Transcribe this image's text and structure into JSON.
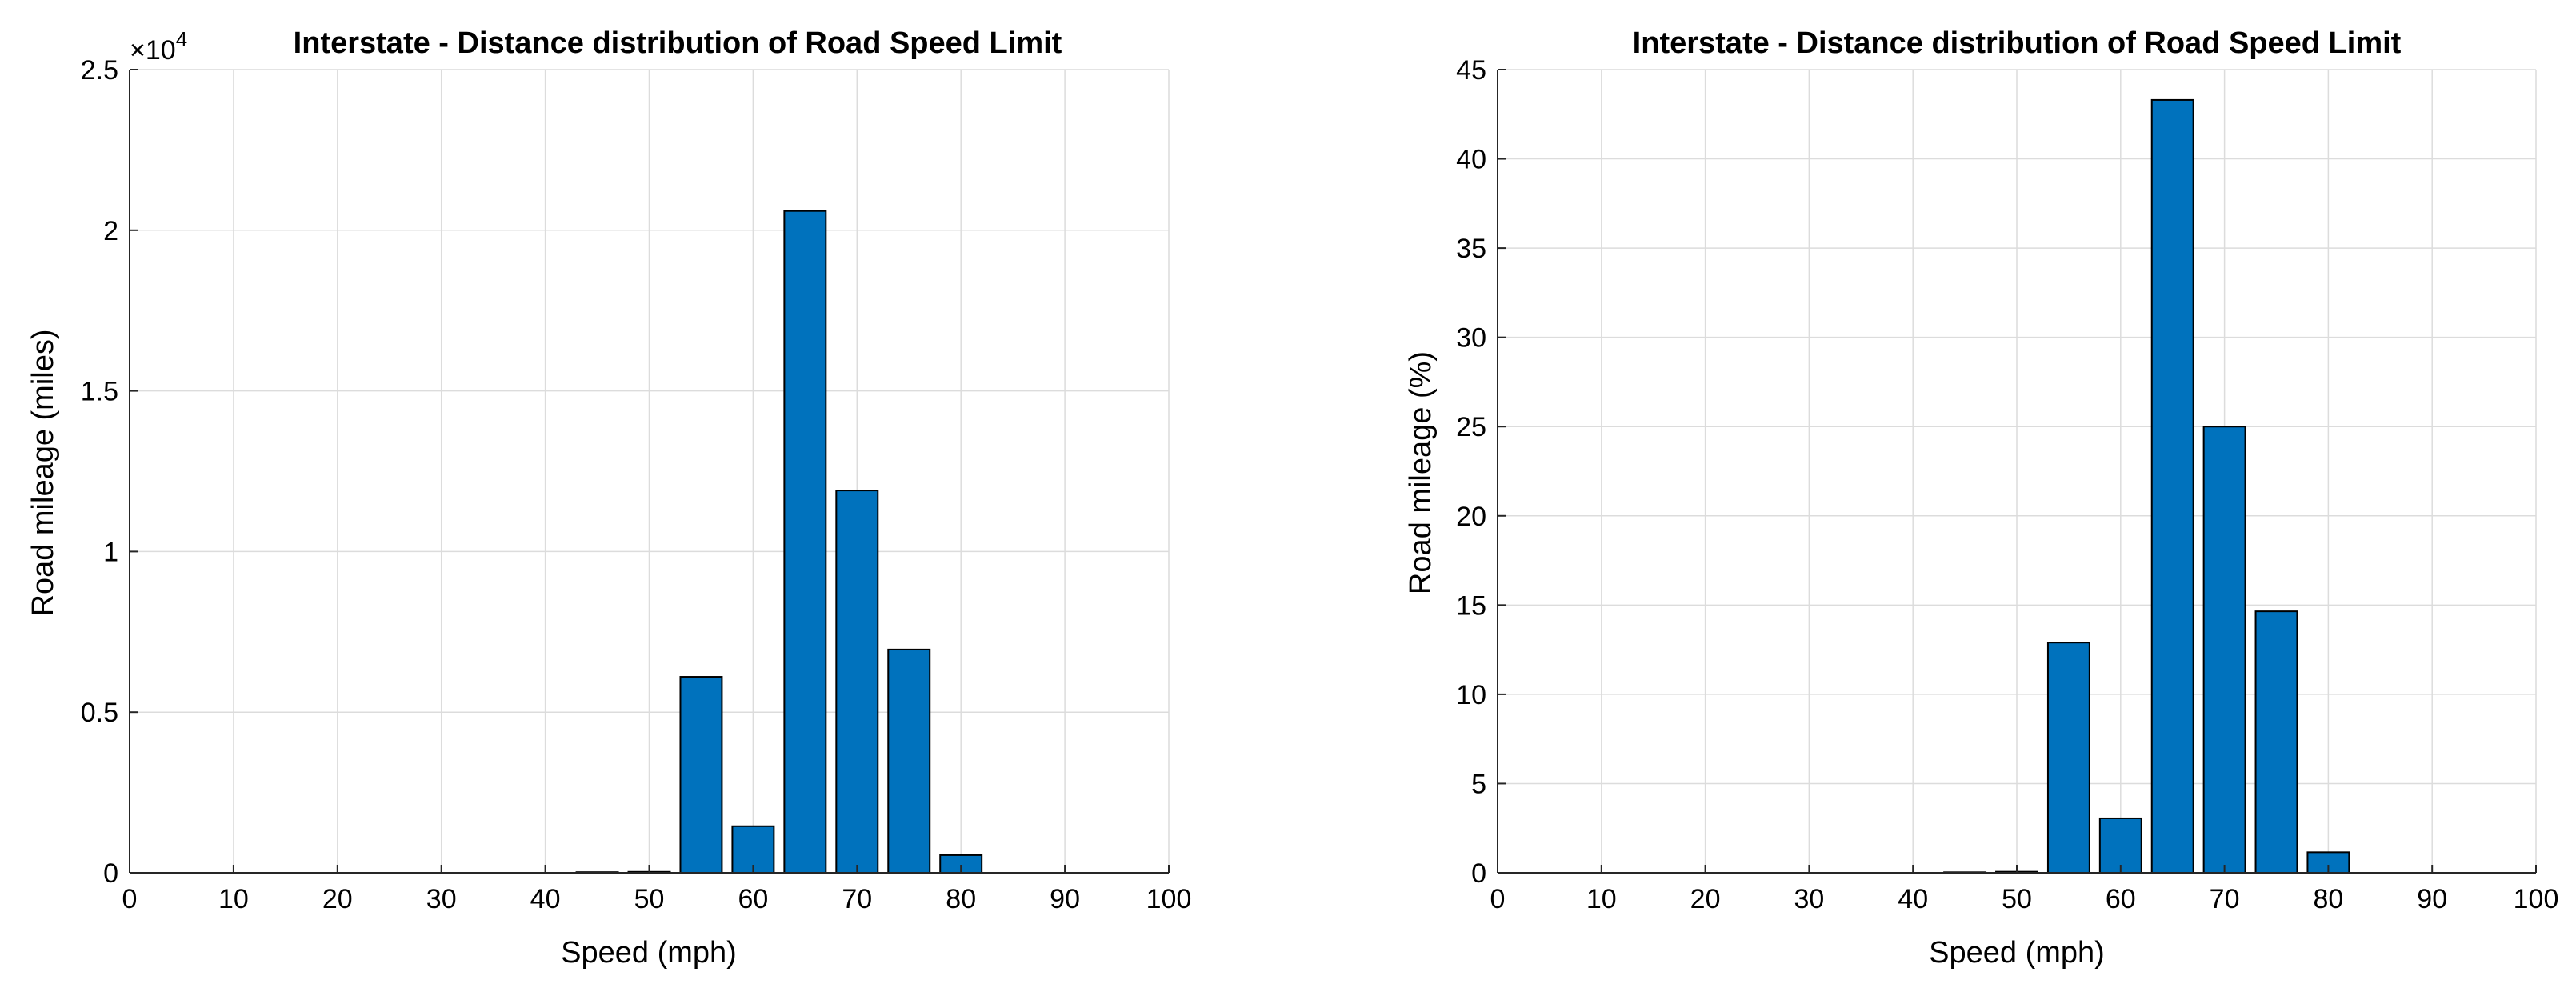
{
  "chart_data": [
    {
      "type": "bar",
      "title": "Interstate - Distance distribution of Road Speed Limit",
      "xlabel": "Speed (mph)",
      "ylabel": "Road mileage (miles)",
      "exponent_label": "×10",
      "exponent_power": "4",
      "xlim": [
        0,
        100
      ],
      "ylim": [
        0,
        2.5
      ],
      "xticks": [
        "0",
        "10",
        "20",
        "30",
        "40",
        "50",
        "60",
        "70",
        "80",
        "90",
        "100"
      ],
      "yticks": [
        "0",
        "0.5",
        "1",
        "1.5",
        "2",
        "2.5"
      ],
      "grid": true,
      "bar_color": "#0072BD",
      "x": [
        45,
        50,
        55,
        60,
        65,
        70,
        75,
        80
      ],
      "values": [
        0.002,
        0.003,
        0.61,
        0.145,
        2.06,
        1.19,
        0.695,
        0.055
      ]
    },
    {
      "type": "bar",
      "title": "Interstate - Distance distribution of Road Speed Limit",
      "xlabel": "Speed (mph)",
      "ylabel": "Road mileage (%)",
      "xlim": [
        0,
        100
      ],
      "ylim": [
        0,
        45
      ],
      "xticks": [
        "0",
        "10",
        "20",
        "30",
        "40",
        "50",
        "60",
        "70",
        "80",
        "90",
        "100"
      ],
      "yticks": [
        "0",
        "5",
        "10",
        "15",
        "20",
        "25",
        "30",
        "35",
        "40",
        "45"
      ],
      "grid": true,
      "bar_color": "#0072BD",
      "x": [
        45,
        50,
        55,
        60,
        65,
        70,
        75,
        80
      ],
      "values": [
        0.03,
        0.06,
        12.9,
        3.05,
        43.3,
        25.0,
        14.65,
        1.15
      ]
    }
  ]
}
